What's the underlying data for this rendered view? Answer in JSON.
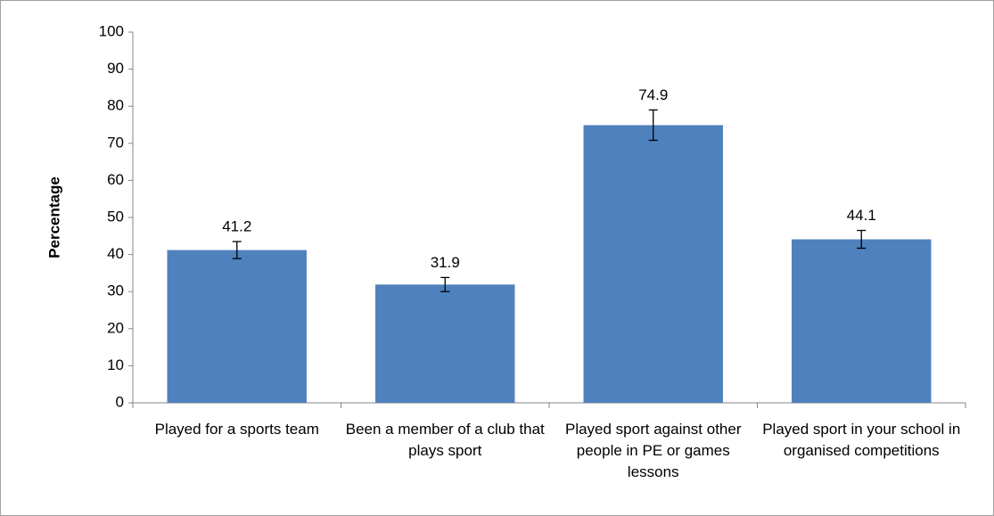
{
  "chart_data": {
    "type": "bar",
    "y_label": "Percentage",
    "categories": [
      "Played for a sports team",
      "Been a member of a club that plays sport",
      "Played sport against other people in PE or games lessons",
      "Played sport in your school in organised competitions"
    ],
    "values": [
      41.2,
      31.9,
      74.9,
      44.1
    ],
    "errors": [
      2.3,
      1.9,
      4.1,
      2.4
    ],
    "color": "#4f81bd",
    "ylim": [
      0,
      100
    ],
    "yticks": [
      0,
      10,
      20,
      30,
      40,
      50,
      60,
      70,
      80,
      90,
      100
    ]
  }
}
